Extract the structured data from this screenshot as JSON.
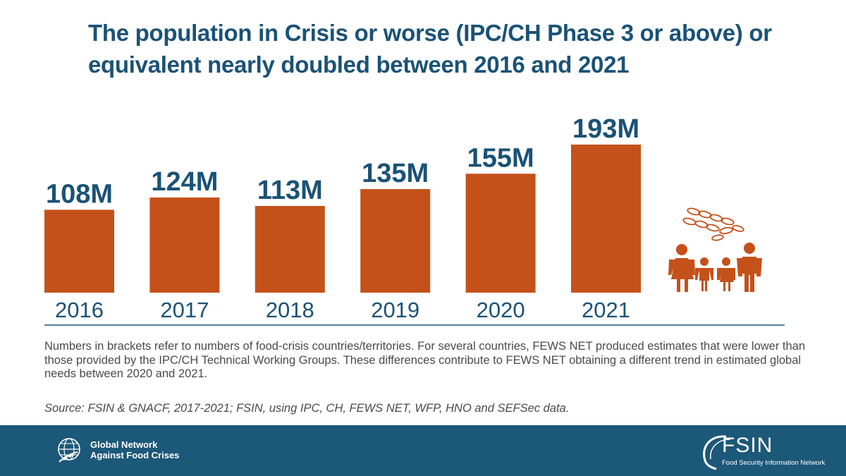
{
  "title": "The population in Crisis or worse (IPC/CH Phase 3 or above) or equivalent nearly doubled between 2016 and 2021",
  "chart_data": {
    "type": "bar",
    "title": "The population in Crisis or worse (IPC/CH Phase 3 or above) or equivalent nearly doubled between 2016 and 2021",
    "categories": [
      "2016",
      "2017",
      "2018",
      "2019",
      "2020",
      "2021"
    ],
    "values": [
      108,
      124,
      113,
      135,
      155,
      193
    ],
    "data_labels": [
      "108M",
      "124M",
      "113M",
      "135M",
      "155M",
      "193M"
    ],
    "unit": "M",
    "xlabel": "",
    "ylabel": "",
    "ylim": [
      0,
      193
    ],
    "grid": false,
    "bar_color": "#c4511a",
    "label_color": "#1a5276"
  },
  "note": "Numbers in brackets refer to numbers of food-crisis countries/territories. For several countries, FEWS NET produced estimates that were lower than those provided by the IPC/CH Technical Working Groups. These differences contribute to FEWS NET obtaining a different trend in estimated global needs between 2020 and 2021.",
  "source": "Source: FSIN & GNACF, 2017-2021; FSIN, using IPC, CH, FEWS NET, WFP, HNO and SEFSec data.",
  "footer": {
    "left_logo_line1": "Global Network",
    "left_logo_line2": "Against Food Crises",
    "right_logo_name": "FSIN",
    "right_logo_tagline": "Food Security Information Network",
    "background": "#1c5878"
  },
  "icons": {
    "left_logo": "globe-wheat-icon",
    "right_logo": "fsin-swoosh-icon",
    "illustration": "family-grain-icon"
  }
}
